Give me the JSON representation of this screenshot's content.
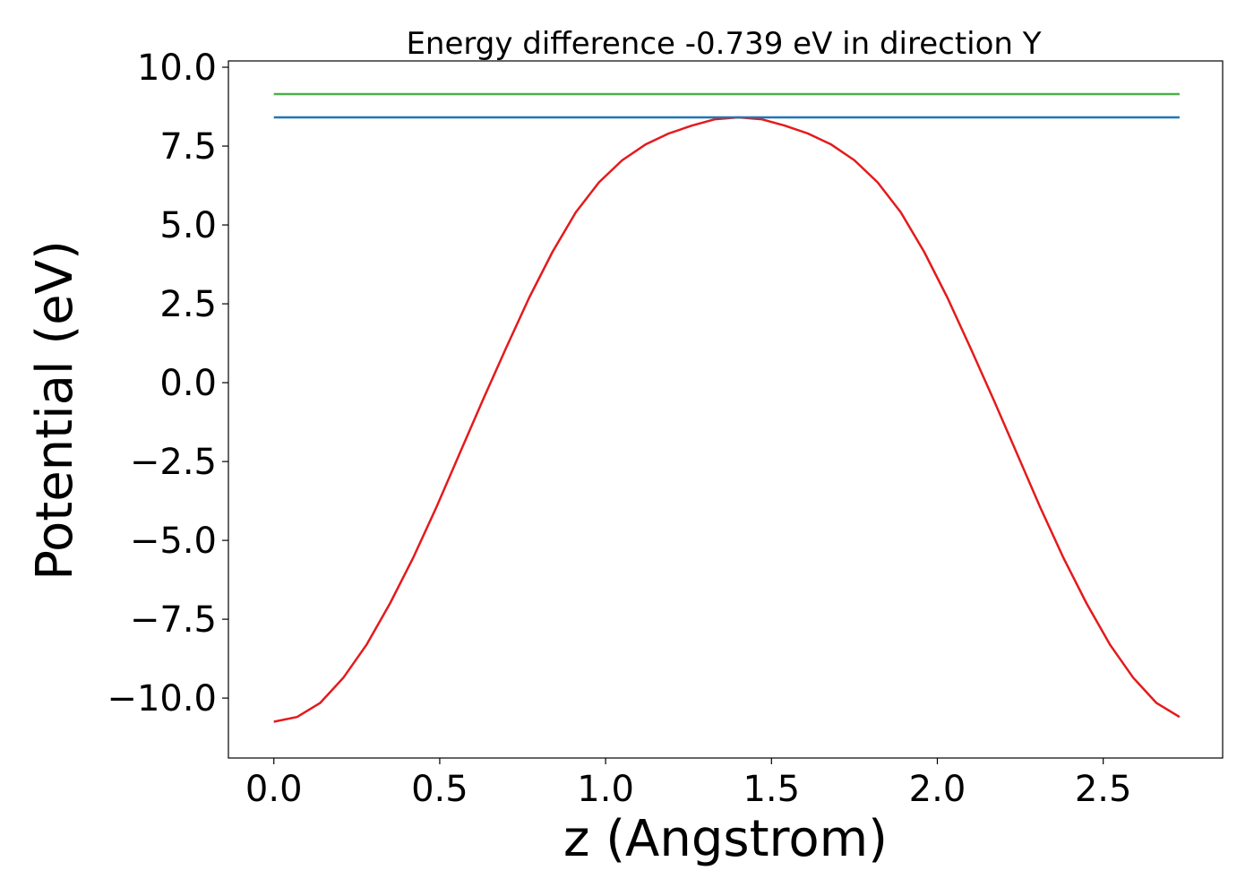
{
  "chart_data": {
    "type": "line",
    "title": "Energy difference -0.739 eV in direction Y",
    "xlabel": "z (Angstrom)",
    "ylabel": "Potential (eV)",
    "xlim": [
      -0.137,
      2.86
    ],
    "ylim": [
      -11.9,
      10.2
    ],
    "x_ticks": [
      0.0,
      0.5,
      1.0,
      1.5,
      2.0,
      2.5
    ],
    "x_tick_labels": [
      "0.0",
      "0.5",
      "1.0",
      "1.5",
      "2.0",
      "2.5"
    ],
    "y_ticks": [
      10.0,
      7.5,
      5.0,
      2.5,
      0.0,
      -2.5,
      -5.0,
      -7.5,
      -10.0
    ],
    "y_tick_labels": [
      "10.0",
      "7.5",
      "5.0",
      "2.5",
      "0.0",
      "−2.5",
      "−5.0",
      "−7.5",
      "−10.0"
    ],
    "grid": false,
    "series": [
      {
        "color": "#e41a1c",
        "x": [
          0.0,
          0.07,
          0.14,
          0.21,
          0.28,
          0.35,
          0.42,
          0.49,
          0.56,
          0.63,
          0.7,
          0.77,
          0.84,
          0.91,
          0.98,
          1.05,
          1.12,
          1.19,
          1.26,
          1.33,
          1.4,
          1.47,
          1.54,
          1.61,
          1.68,
          1.75,
          1.82,
          1.89,
          1.96,
          2.03,
          2.1,
          2.17,
          2.24,
          2.31,
          2.38,
          2.45,
          2.52,
          2.59,
          2.66,
          2.73
        ],
        "y": [
          -10.75,
          -10.6,
          -10.15,
          -9.35,
          -8.3,
          -7.0,
          -5.55,
          -3.95,
          -2.25,
          -0.55,
          1.1,
          2.7,
          4.15,
          5.4,
          6.35,
          7.05,
          7.55,
          7.9,
          8.15,
          8.35,
          8.41,
          8.35,
          8.15,
          7.9,
          7.55,
          7.05,
          6.35,
          5.4,
          4.15,
          2.7,
          1.1,
          -0.55,
          -2.25,
          -3.95,
          -5.55,
          -7.0,
          -8.3,
          -9.35,
          -10.15,
          -10.6
        ]
      },
      {
        "color": "#1f77b4",
        "x": [
          0.0,
          2.73
        ],
        "y": [
          8.41,
          8.41
        ]
      },
      {
        "color": "#4daf4a",
        "x": [
          0.0,
          2.73
        ],
        "y": [
          9.15,
          9.15
        ]
      }
    ]
  }
}
